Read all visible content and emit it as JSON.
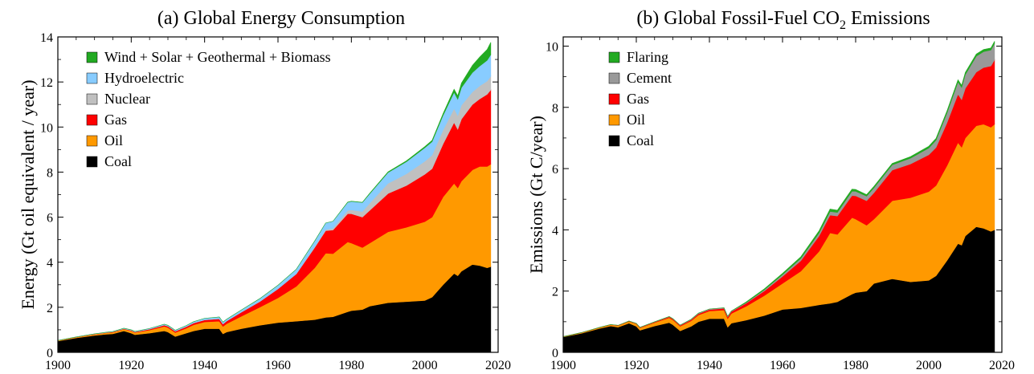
{
  "chart_data": [
    {
      "type": "area",
      "stacked": true,
      "title": "(a)  Global Energy Consumption",
      "ylabel": "Energy (Gt oil equivalent / year)",
      "xlabel": "",
      "xlim": [
        1900,
        2020
      ],
      "ylim": [
        0,
        14
      ],
      "xticks": [
        "1900",
        "1920",
        "1940",
        "1960",
        "1980",
        "2000",
        "2020"
      ],
      "yticks": [
        "0",
        "2",
        "4",
        "6",
        "8",
        "10",
        "12",
        "14"
      ],
      "legend_placement": "top-left",
      "x": [
        1900,
        1905,
        1910,
        1913,
        1915,
        1918,
        1920,
        1921,
        1925,
        1929,
        1930,
        1932,
        1935,
        1937,
        1940,
        1944,
        1945,
        1946,
        1950,
        1955,
        1960,
        1965,
        1970,
        1973,
        1975,
        1979,
        1980,
        1983,
        1985,
        1990,
        1995,
        2000,
        2002,
        2005,
        2008,
        2009,
        2010,
        2013,
        2015,
        2017,
        2018
      ],
      "series": [
        {
          "name": "Coal",
          "color": "#000000",
          "values": [
            0.5,
            0.64,
            0.75,
            0.8,
            0.82,
            0.95,
            0.85,
            0.78,
            0.85,
            0.95,
            0.9,
            0.7,
            0.85,
            0.95,
            1.05,
            1.05,
            0.82,
            0.9,
            1.05,
            1.2,
            1.32,
            1.38,
            1.45,
            1.55,
            1.58,
            1.8,
            1.85,
            1.9,
            2.05,
            2.2,
            2.25,
            2.3,
            2.45,
            3.0,
            3.5,
            3.4,
            3.6,
            3.9,
            3.85,
            3.75,
            3.8
          ]
        },
        {
          "name": "Oil",
          "color": "#ff9900",
          "values": [
            0.02,
            0.03,
            0.05,
            0.06,
            0.07,
            0.08,
            0.1,
            0.1,
            0.14,
            0.2,
            0.2,
            0.18,
            0.22,
            0.27,
            0.3,
            0.33,
            0.33,
            0.37,
            0.55,
            0.8,
            1.1,
            1.55,
            2.3,
            2.85,
            2.8,
            3.1,
            3.0,
            2.75,
            2.8,
            3.15,
            3.3,
            3.5,
            3.55,
            3.9,
            4.0,
            3.9,
            4.0,
            4.2,
            4.4,
            4.5,
            4.55
          ]
        },
        {
          "name": "Gas",
          "color": "#ff0000",
          "values": [
            0.005,
            0.01,
            0.01,
            0.015,
            0.02,
            0.02,
            0.025,
            0.025,
            0.04,
            0.06,
            0.06,
            0.06,
            0.07,
            0.08,
            0.09,
            0.11,
            0.11,
            0.12,
            0.18,
            0.25,
            0.4,
            0.55,
            0.9,
            1.0,
            1.05,
            1.25,
            1.3,
            1.35,
            1.45,
            1.7,
            1.85,
            2.1,
            2.15,
            2.35,
            2.7,
            2.6,
            2.75,
            2.9,
            3.0,
            3.2,
            3.3
          ]
        },
        {
          "name": "Nuclear",
          "color": "#c0c0c0",
          "values": [
            0,
            0,
            0,
            0,
            0,
            0,
            0,
            0,
            0,
            0,
            0,
            0,
            0,
            0,
            0,
            0,
            0,
            0,
            0,
            0,
            0,
            0.01,
            0.03,
            0.05,
            0.08,
            0.15,
            0.17,
            0.25,
            0.32,
            0.45,
            0.52,
            0.58,
            0.6,
            0.62,
            0.62,
            0.61,
            0.62,
            0.56,
            0.58,
            0.59,
            0.61
          ]
        },
        {
          "name": "Hydroelectric",
          "color": "#88ccff",
          "values": [
            0.002,
            0.005,
            0.01,
            0.012,
            0.015,
            0.02,
            0.025,
            0.025,
            0.03,
            0.04,
            0.04,
            0.04,
            0.05,
            0.06,
            0.07,
            0.08,
            0.08,
            0.08,
            0.1,
            0.13,
            0.16,
            0.2,
            0.26,
            0.29,
            0.31,
            0.36,
            0.38,
            0.4,
            0.42,
            0.48,
            0.54,
            0.6,
            0.6,
            0.65,
            0.72,
            0.72,
            0.78,
            0.86,
            0.88,
            0.92,
            0.95
          ]
        },
        {
          "name": "Wind + Solar + Geothermal + Biomass",
          "color": "#22aa22",
          "values": [
            0,
            0,
            0,
            0,
            0,
            0,
            0,
            0,
            0,
            0,
            0,
            0,
            0,
            0,
            0,
            0,
            0,
            0,
            0,
            0,
            0,
            0,
            0,
            0,
            0,
            0.01,
            0.01,
            0.01,
            0.02,
            0.03,
            0.04,
            0.05,
            0.06,
            0.08,
            0.14,
            0.16,
            0.2,
            0.32,
            0.4,
            0.48,
            0.55
          ]
        }
      ]
    },
    {
      "type": "area",
      "stacked": true,
      "title": "(b)  Global Fossil-Fuel CO",
      "title_subscript": "2",
      "title_suffix": " Emissions",
      "ylabel": "Emissions (Gt C/year)",
      "xlabel": "",
      "xlim": [
        1900,
        2020
      ],
      "ylim": [
        0,
        10.3
      ],
      "xticks": [
        "1900",
        "1920",
        "1940",
        "1960",
        "1980",
        "2000",
        "2020"
      ],
      "yticks": [
        "0",
        "2",
        "4",
        "6",
        "8",
        "10"
      ],
      "legend_placement": "top-left",
      "x": [
        1900,
        1905,
        1910,
        1913,
        1915,
        1918,
        1920,
        1921,
        1925,
        1929,
        1930,
        1932,
        1935,
        1937,
        1940,
        1944,
        1945,
        1946,
        1950,
        1955,
        1960,
        1965,
        1970,
        1973,
        1975,
        1979,
        1980,
        1983,
        1985,
        1990,
        1995,
        2000,
        2002,
        2005,
        2008,
        2009,
        2010,
        2013,
        2015,
        2017,
        2018
      ],
      "series": [
        {
          "name": "Coal",
          "color": "#000000",
          "values": [
            0.5,
            0.62,
            0.78,
            0.86,
            0.82,
            0.95,
            0.85,
            0.72,
            0.86,
            0.97,
            0.9,
            0.7,
            0.85,
            1.0,
            1.1,
            1.1,
            0.82,
            0.95,
            1.05,
            1.2,
            1.4,
            1.45,
            1.55,
            1.6,
            1.65,
            1.9,
            1.95,
            2.0,
            2.25,
            2.4,
            2.3,
            2.35,
            2.5,
            3.0,
            3.55,
            3.5,
            3.8,
            4.1,
            4.05,
            3.95,
            4.0
          ]
        },
        {
          "name": "Oil",
          "color": "#ff9900",
          "values": [
            0.01,
            0.02,
            0.03,
            0.04,
            0.05,
            0.06,
            0.08,
            0.08,
            0.11,
            0.16,
            0.16,
            0.15,
            0.18,
            0.22,
            0.25,
            0.28,
            0.28,
            0.32,
            0.45,
            0.65,
            0.85,
            1.2,
            1.75,
            2.3,
            2.2,
            2.5,
            2.4,
            2.15,
            2.1,
            2.55,
            2.75,
            2.9,
            2.95,
            3.1,
            3.3,
            3.2,
            3.2,
            3.3,
            3.4,
            3.4,
            3.45
          ]
        },
        {
          "name": "Gas",
          "color": "#ff0000",
          "values": [
            0.002,
            0.004,
            0.005,
            0.006,
            0.008,
            0.01,
            0.012,
            0.012,
            0.02,
            0.03,
            0.03,
            0.03,
            0.035,
            0.04,
            0.045,
            0.055,
            0.055,
            0.06,
            0.1,
            0.15,
            0.23,
            0.34,
            0.5,
            0.58,
            0.6,
            0.72,
            0.76,
            0.8,
            0.86,
            1.0,
            1.1,
            1.2,
            1.24,
            1.4,
            1.58,
            1.55,
            1.62,
            1.75,
            1.85,
            2.0,
            2.1
          ]
        },
        {
          "name": "Cement",
          "color": "#999999",
          "values": [
            0.001,
            0.002,
            0.003,
            0.004,
            0.004,
            0.004,
            0.005,
            0.005,
            0.008,
            0.01,
            0.01,
            0.01,
            0.015,
            0.02,
            0.02,
            0.02,
            0.02,
            0.02,
            0.02,
            0.04,
            0.06,
            0.08,
            0.1,
            0.12,
            0.12,
            0.14,
            0.15,
            0.15,
            0.16,
            0.17,
            0.19,
            0.22,
            0.24,
            0.32,
            0.4,
            0.4,
            0.45,
            0.52,
            0.52,
            0.52,
            0.54
          ]
        },
        {
          "name": "Flaring",
          "color": "#22aa22",
          "values": [
            0,
            0,
            0,
            0,
            0,
            0,
            0,
            0,
            0,
            0,
            0,
            0,
            0,
            0,
            0,
            0,
            0,
            0,
            0.02,
            0.03,
            0.04,
            0.05,
            0.07,
            0.08,
            0.07,
            0.07,
            0.06,
            0.05,
            0.05,
            0.05,
            0.05,
            0.06,
            0.06,
            0.07,
            0.07,
            0.07,
            0.07,
            0.07,
            0.07,
            0.07,
            0.07
          ]
        }
      ]
    }
  ]
}
